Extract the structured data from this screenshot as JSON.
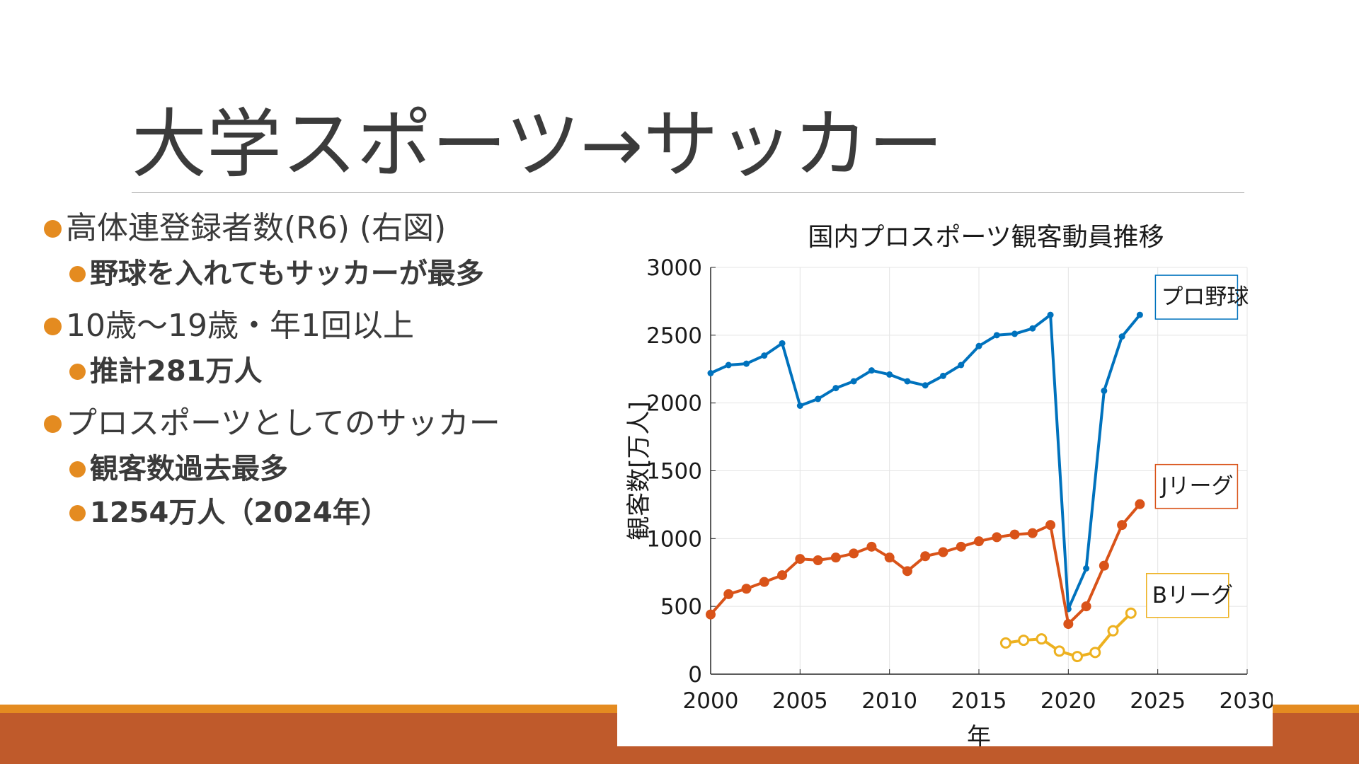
{
  "slide": {
    "title": "大学スポーツ→サッカー",
    "bullets": [
      {
        "text": "高体連登録者数(R6) (右図)",
        "sub": [
          {
            "text": "野球を入れてもサッカーが最多"
          }
        ]
      },
      {
        "text": "10歳～19歳・年1回以上",
        "sub": [
          {
            "text": "推計281万人"
          }
        ]
      },
      {
        "text": "プロスポーツとしてのサッカー",
        "sub": [
          {
            "text": "観客数過去最多"
          },
          {
            "text": "1254万人（2024年）"
          }
        ]
      }
    ]
  },
  "colors": {
    "title": "#3b3b3b",
    "bullet": "#e48b20",
    "bottom_bar": "#bf5a2b",
    "bottom_stripe": "#e48b20",
    "pro_baseball": "#0072bd",
    "j_league": "#d95319",
    "b_league": "#edb120"
  },
  "chart_data": {
    "type": "line",
    "title": "国内プロスポーツ観客動員推移",
    "xlabel": "年",
    "ylabel": "観客数[万人]",
    "xlim": [
      2000,
      2030
    ],
    "ylim": [
      0,
      3000
    ],
    "xticks": [
      2000,
      2005,
      2010,
      2015,
      2020,
      2025,
      2030
    ],
    "yticks": [
      0,
      500,
      1000,
      1500,
      2000,
      2500,
      3000
    ],
    "grid": true,
    "series": [
      {
        "name": "プロ野球",
        "color": "#0072bd",
        "marker": "dot",
        "x": [
          2000,
          2001,
          2002,
          2003,
          2004,
          2005,
          2006,
          2007,
          2008,
          2009,
          2010,
          2011,
          2012,
          2013,
          2014,
          2015,
          2016,
          2017,
          2018,
          2019,
          2020,
          2021,
          2022,
          2023,
          2024
        ],
        "y": [
          2220,
          2280,
          2290,
          2350,
          2440,
          1980,
          2030,
          2110,
          2160,
          2240,
          2210,
          2160,
          2130,
          2200,
          2280,
          2420,
          2500,
          2510,
          2550,
          2650,
          480,
          780,
          2090,
          2490,
          2650
        ]
      },
      {
        "name": "Jリーグ",
        "color": "#d95319",
        "marker": "filled-circle",
        "x": [
          2000,
          2001,
          2002,
          2003,
          2004,
          2005,
          2006,
          2007,
          2008,
          2009,
          2010,
          2011,
          2012,
          2013,
          2014,
          2015,
          2016,
          2017,
          2018,
          2019,
          2020,
          2021,
          2022,
          2023,
          2024
        ],
        "y": [
          440,
          590,
          630,
          680,
          730,
          850,
          840,
          860,
          890,
          940,
          860,
          760,
          870,
          900,
          940,
          980,
          1010,
          1030,
          1040,
          1100,
          370,
          500,
          800,
          1100,
          1254
        ]
      },
      {
        "name": "Bリーグ",
        "color": "#edb120",
        "marker": "open-circle",
        "x": [
          2016.5,
          2017.5,
          2018.5,
          2019.5,
          2020.5,
          2021.5,
          2022.5,
          2023.5
        ],
        "y": [
          230,
          250,
          260,
          170,
          130,
          160,
          320,
          450
        ]
      }
    ]
  }
}
